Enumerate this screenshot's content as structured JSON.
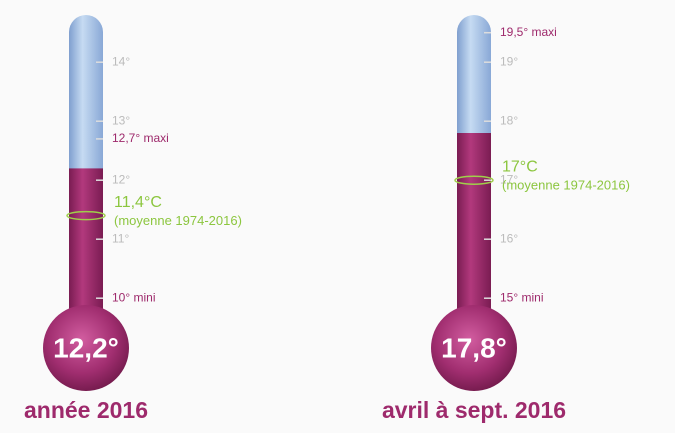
{
  "chart_data": [
    {
      "type": "thermometer",
      "title": "année 2016",
      "value": 12.2,
      "value_label": "12,2°",
      "ylim": [
        9.8,
        14.8
      ],
      "yticks": [
        {
          "value": 11,
          "label": "11°"
        },
        {
          "value": 12,
          "label": "12°"
        },
        {
          "value": 13,
          "label": "13°"
        },
        {
          "value": 14,
          "label": "14°"
        }
      ],
      "min": {
        "value": 10,
        "label": "10° mini"
      },
      "max": {
        "value": 12.7,
        "label": "12,7° maxi"
      },
      "mean": {
        "value": 11.4,
        "label": "11,4°C",
        "note": "(moyenne 1974-2016)"
      },
      "color": "#9e2a6c"
    },
    {
      "type": "thermometer",
      "title": "avril à sept. 2016",
      "value": 17.8,
      "value_label": "17,8°",
      "ylim": [
        14.8,
        19.8
      ],
      "yticks": [
        {
          "value": 16,
          "label": "16°"
        },
        {
          "value": 17,
          "label": "17°"
        },
        {
          "value": 18,
          "label": "18°"
        },
        {
          "value": 19,
          "label": "19°"
        }
      ],
      "min": {
        "value": 15,
        "label": "15° mini"
      },
      "max": {
        "value": 19.5,
        "label": "19,5° maxi"
      },
      "mean": {
        "value": 17,
        "label": "17°C",
        "note": "(moyenne 1974-2016)"
      },
      "color": "#9e2a6c"
    }
  ]
}
